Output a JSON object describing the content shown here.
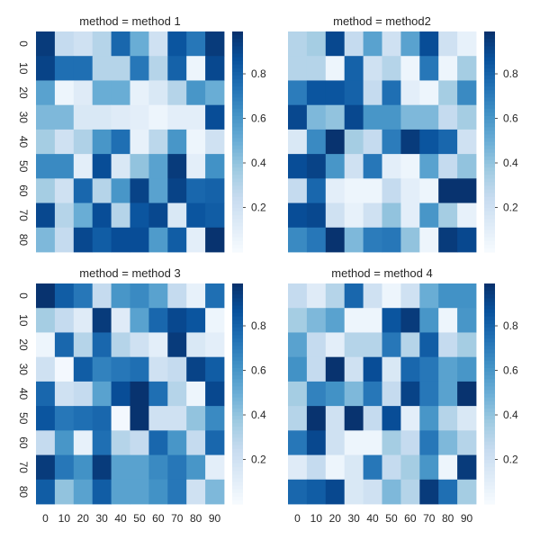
{
  "colormap": "Blues",
  "colorbar_ticks": [
    "0.2",
    "0.4",
    "0.6",
    "0.8"
  ],
  "colorbar_tick_values": [
    0.2,
    0.4,
    0.6,
    0.8
  ],
  "color_range": [
    0.0,
    0.99
  ],
  "chart_data": [
    {
      "type": "heatmap",
      "title": "method = method 1",
      "x_tick_labels": [
        "0",
        "10",
        "20",
        "30",
        "40",
        "50",
        "60",
        "70",
        "80",
        "90"
      ],
      "y_tick_labels": [
        "0",
        "10",
        "20",
        "30",
        "40",
        "50",
        "60",
        "70",
        "80"
      ],
      "x_tick_labels_shown": false,
      "y_tick_labels_shown": true,
      "values": [
        [
          0.95,
          0.25,
          0.2,
          0.3,
          0.78,
          0.5,
          0.2,
          0.85,
          0.72,
          0.95
        ],
        [
          0.92,
          0.75,
          0.75,
          0.3,
          0.3,
          0.72,
          0.3,
          0.8,
          0.05,
          0.9
        ],
        [
          0.55,
          0.05,
          0.12,
          0.5,
          0.5,
          0.08,
          0.15,
          0.3,
          0.6,
          0.5
        ],
        [
          0.45,
          0.45,
          0.15,
          0.15,
          0.12,
          0.1,
          0.05,
          0.1,
          0.1,
          0.88
        ],
        [
          0.35,
          0.2,
          0.32,
          0.6,
          0.75,
          0.08,
          0.28,
          0.6,
          0.05,
          0.2
        ],
        [
          0.65,
          0.65,
          0.1,
          0.88,
          0.15,
          0.4,
          0.55,
          0.95,
          0.1,
          0.62
        ],
        [
          0.35,
          0.2,
          0.78,
          0.3,
          0.6,
          0.92,
          0.55,
          0.92,
          0.78,
          0.8
        ],
        [
          0.9,
          0.3,
          0.5,
          0.88,
          0.3,
          0.85,
          0.9,
          0.15,
          0.85,
          0.82
        ],
        [
          0.45,
          0.25,
          0.9,
          0.82,
          0.88,
          0.88,
          0.58,
          0.82,
          0.1,
          0.98
        ]
      ]
    },
    {
      "type": "heatmap",
      "title": "method = method2",
      "x_tick_labels": [
        "0",
        "10",
        "20",
        "30",
        "40",
        "50",
        "60",
        "70",
        "80",
        "90"
      ],
      "y_tick_labels": [
        "0",
        "10",
        "20",
        "30",
        "40",
        "50",
        "60",
        "70",
        "80"
      ],
      "x_tick_labels_shown": false,
      "y_tick_labels_shown": false,
      "values": [
        [
          0.3,
          0.35,
          0.9,
          0.25,
          0.55,
          0.2,
          0.55,
          0.88,
          0.2,
          0.08
        ],
        [
          0.3,
          0.3,
          0.05,
          0.8,
          0.2,
          0.3,
          0.05,
          0.72,
          0.05,
          0.35
        ],
        [
          0.7,
          0.85,
          0.85,
          0.8,
          0.25,
          0.75,
          0.1,
          0.05,
          0.35,
          0.65
        ],
        [
          0.9,
          0.45,
          0.4,
          0.9,
          0.6,
          0.6,
          0.45,
          0.45,
          0.25,
          0.35
        ],
        [
          0.15,
          0.65,
          0.98,
          0.35,
          0.25,
          0.7,
          0.95,
          0.85,
          0.78,
          0.2
        ],
        [
          0.88,
          0.92,
          0.6,
          0.2,
          0.72,
          0.1,
          0.05,
          0.55,
          0.25,
          0.4
        ],
        [
          0.25,
          0.78,
          0.1,
          0.05,
          0.05,
          0.25,
          0.1,
          0.05,
          0.98,
          0.98
        ],
        [
          0.88,
          0.9,
          0.2,
          0.08,
          0.2,
          0.4,
          0.1,
          0.6,
          0.35,
          0.08
        ],
        [
          0.65,
          0.72,
          0.98,
          0.45,
          0.7,
          0.72,
          0.4,
          0.05,
          0.95,
          0.9
        ]
      ]
    },
    {
      "type": "heatmap",
      "title": "method = method 3",
      "x_tick_labels": [
        "0",
        "10",
        "20",
        "30",
        "40",
        "50",
        "60",
        "70",
        "80",
        "90"
      ],
      "y_tick_labels": [
        "0",
        "10",
        "20",
        "30",
        "40",
        "50",
        "60",
        "70",
        "80"
      ],
      "x_tick_labels_shown": true,
      "y_tick_labels_shown": true,
      "values": [
        [
          0.98,
          0.82,
          0.72,
          0.25,
          0.6,
          0.65,
          0.55,
          0.25,
          0.08,
          0.75
        ],
        [
          0.35,
          0.25,
          0.12,
          0.95,
          0.12,
          0.55,
          0.78,
          0.9,
          0.85,
          0.05
        ],
        [
          0.05,
          0.78,
          0.3,
          0.78,
          0.3,
          0.2,
          0.1,
          0.95,
          0.15,
          0.1
        ],
        [
          0.2,
          0.02,
          0.82,
          0.68,
          0.72,
          0.75,
          0.2,
          0.25,
          0.92,
          0.82
        ],
        [
          0.78,
          0.2,
          0.25,
          0.55,
          0.88,
          0.98,
          0.75,
          0.3,
          0.05,
          0.9
        ],
        [
          0.85,
          0.72,
          0.75,
          0.78,
          0.02,
          0.98,
          0.2,
          0.2,
          0.4,
          0.65
        ],
        [
          0.25,
          0.6,
          0.08,
          0.75,
          0.3,
          0.25,
          0.78,
          0.6,
          0.25,
          0.78
        ],
        [
          0.95,
          0.72,
          0.62,
          0.95,
          0.55,
          0.55,
          0.65,
          0.72,
          0.6,
          0.1
        ],
        [
          0.82,
          0.4,
          0.55,
          0.82,
          0.55,
          0.55,
          0.62,
          0.72,
          0.2,
          0.45
        ]
      ]
    },
    {
      "type": "heatmap",
      "title": "method = method 4",
      "x_tick_labels": [
        "0",
        "10",
        "20",
        "30",
        "40",
        "50",
        "60",
        "70",
        "80",
        "90"
      ],
      "y_tick_labels": [
        "0",
        "10",
        "20",
        "30",
        "40",
        "50",
        "60",
        "70",
        "80"
      ],
      "x_tick_labels_shown": true,
      "y_tick_labels_shown": false,
      "values": [
        [
          0.25,
          0.12,
          0.3,
          0.78,
          0.2,
          0.05,
          0.2,
          0.5,
          0.62,
          0.62
        ],
        [
          0.35,
          0.45,
          0.55,
          0.05,
          0.05,
          0.85,
          0.95,
          0.6,
          0.05,
          0.6
        ],
        [
          0.55,
          0.25,
          0.1,
          0.3,
          0.3,
          0.72,
          0.3,
          0.82,
          0.25,
          0.35
        ],
        [
          0.62,
          0.25,
          0.98,
          0.2,
          0.88,
          0.15,
          0.78,
          0.72,
          0.55,
          0.6
        ],
        [
          0.35,
          0.68,
          0.62,
          0.45,
          0.72,
          0.25,
          0.92,
          0.72,
          0.55,
          0.98
        ],
        [
          0.3,
          0.98,
          0.2,
          0.98,
          0.25,
          0.88,
          0.1,
          0.6,
          0.3,
          0.15
        ],
        [
          0.72,
          0.9,
          0.2,
          0.05,
          0.05,
          0.35,
          0.25,
          0.72,
          0.45,
          0.3
        ],
        [
          0.12,
          0.25,
          0.05,
          0.15,
          0.72,
          0.25,
          0.35,
          0.6,
          0.05,
          0.95
        ],
        [
          0.78,
          0.82,
          0.9,
          0.15,
          0.2,
          0.45,
          0.3,
          0.95,
          0.75,
          0.35
        ]
      ]
    }
  ]
}
